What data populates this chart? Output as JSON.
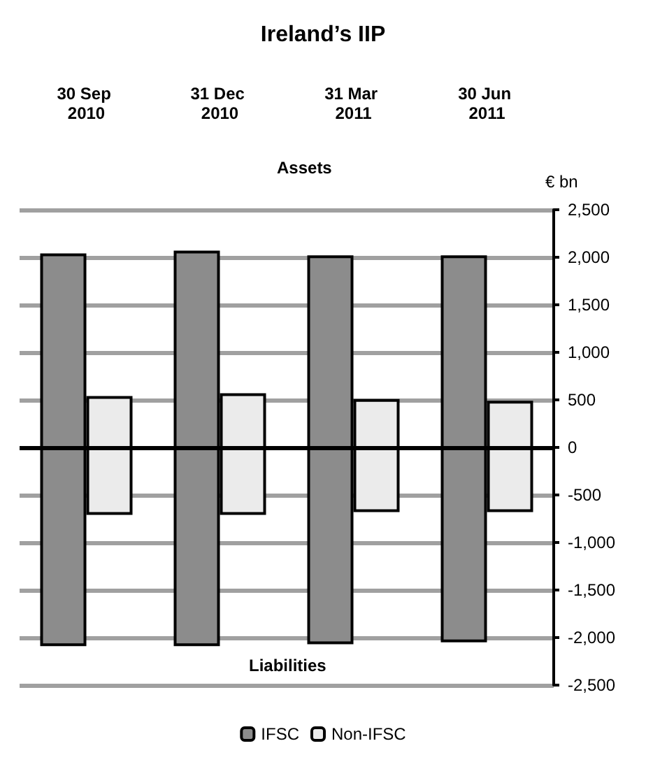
{
  "chart_data": {
    "type": "bar",
    "title": "Ireland’s IIP",
    "ylabel": "€ bn",
    "annotations": [
      "Assets",
      "Liabilities"
    ],
    "categories": [
      "30 Sep 2010",
      "31 Dec 2010",
      "31 Mar 2011",
      "30 Jun 2011"
    ],
    "series": [
      {
        "name": "IFSC",
        "color": "#8c8c8c",
        "base": [
          -2090,
          -2090,
          -2070,
          -2050
        ],
        "values": [
          4130,
          4160,
          4090,
          4070
        ]
      },
      {
        "name": "Non-IFSC",
        "color": "#ebebeb",
        "base": [
          -710,
          -710,
          -680,
          -680
        ],
        "values": [
          1250,
          1280,
          1190,
          1170
        ]
      }
    ],
    "ylim": [
      -2500,
      2500
    ],
    "yticks": [
      {
        "value": -2500,
        "label": "-2,500"
      },
      {
        "value": -2000,
        "label": "-2,000"
      },
      {
        "value": -1500,
        "label": "-1,500"
      },
      {
        "value": -1000,
        "label": "-1,000"
      },
      {
        "value": -500,
        "label": "-500"
      },
      0,
      500,
      {
        "value": 1000,
        "label": "1,000"
      },
      {
        "value": 1500,
        "label": "1,500"
      },
      {
        "value": 2000,
        "label": "2,000"
      },
      {
        "value": 2500,
        "label": "2,500"
      }
    ],
    "grid": "y",
    "legend": "bottom"
  }
}
